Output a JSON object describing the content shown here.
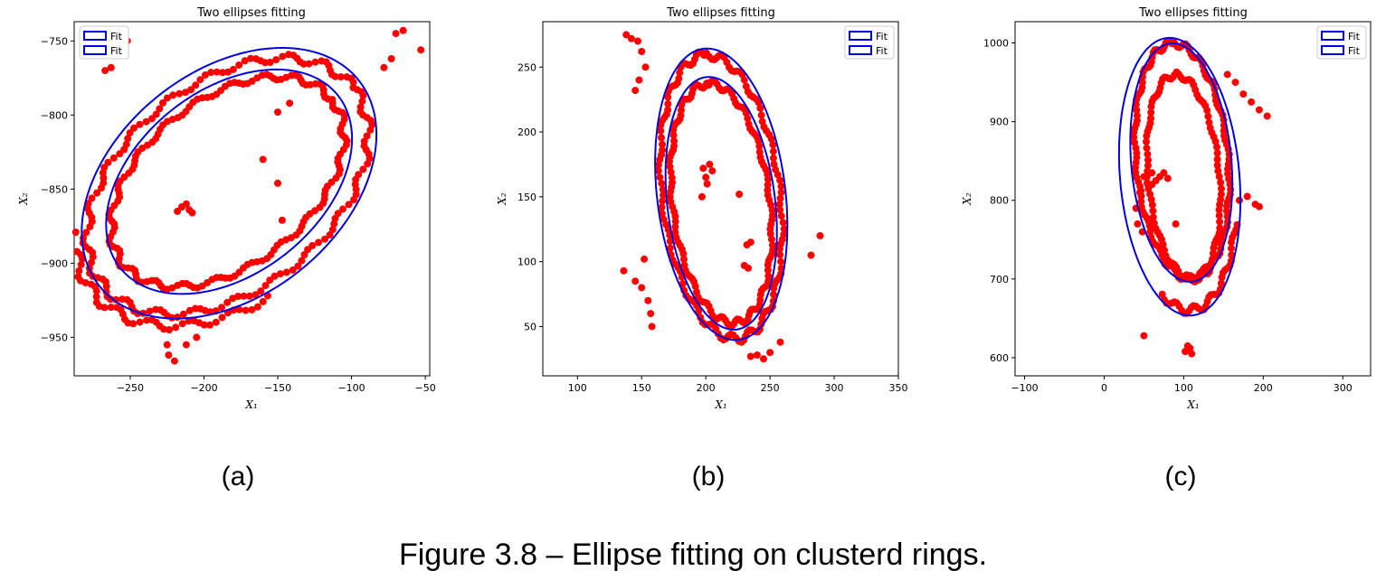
{
  "figure": {
    "caption": "Figure 3.8 – Ellipse fitting on clusterd rings.",
    "sublabels": [
      "(a)",
      "(b)",
      "(c)"
    ]
  },
  "colors": {
    "points": "#ff0000",
    "fit": "#0000e0"
  },
  "chart_data": [
    {
      "type": "scatter",
      "title": "Two ellipses fitting",
      "xlabel": "X₁",
      "ylabel": "X₂",
      "xlim": [
        -288,
        -47
      ],
      "ylim": [
        -976,
        -737
      ],
      "xticks": [
        -250,
        -200,
        -150,
        -100,
        -50
      ],
      "xtick_labels": [
        "−250",
        "−200",
        "−150",
        "−100",
        "−50"
      ],
      "yticks": [
        -950,
        -900,
        -850,
        -800,
        -750
      ],
      "ytick_labels": [
        "−950",
        "−900",
        "−850",
        "−800",
        "−750"
      ],
      "legend": {
        "placement": "upper-left",
        "entries": [
          "Fit",
          "Fit"
        ]
      },
      "fits": [
        {
          "cx": -183,
          "cy": -846,
          "a": 112,
          "b": 76,
          "angle_deg": 38
        },
        {
          "cx": -183,
          "cy": -845,
          "a": 94,
          "b": 62,
          "angle_deg": 38
        }
      ],
      "rings": [
        {
          "cx": -184,
          "cy": -848,
          "a": 108,
          "b": 70,
          "angle_deg": 38,
          "n": 160,
          "arc": [
            0,
            360
          ]
        },
        {
          "cx": -184,
          "cy": -845,
          "a": 90,
          "b": 56,
          "angle_deg": 38,
          "n": 160,
          "arc": [
            0,
            360
          ]
        },
        {
          "cx": -184,
          "cy": -848,
          "a": 116,
          "b": 78,
          "angle_deg": 38,
          "n": 50,
          "arc": [
            150,
            260
          ]
        }
      ],
      "points": [
        [
          -215,
          -862
        ],
        [
          -212,
          -860
        ],
        [
          -218,
          -865
        ],
        [
          -210,
          -864
        ],
        [
          -208,
          -866
        ],
        [
          -150,
          -846
        ],
        [
          -147,
          -871
        ],
        [
          -252,
          -750
        ],
        [
          -267,
          -770
        ],
        [
          -263,
          -768
        ],
        [
          -70,
          -745
        ],
        [
          -65,
          -743
        ],
        [
          -53,
          -756
        ],
        [
          -73,
          -762
        ],
        [
          -78,
          -768
        ],
        [
          -225,
          -955
        ],
        [
          -224,
          -962
        ],
        [
          -220,
          -966
        ],
        [
          -212,
          -955
        ],
        [
          -205,
          -950
        ],
        [
          -160,
          -830
        ],
        [
          -150,
          -798
        ],
        [
          -142,
          -792
        ]
      ]
    },
    {
      "type": "scatter",
      "title": "Two ellipses fitting",
      "xlabel": "X₁",
      "ylabel": "X₂",
      "xlim": [
        73,
        350
      ],
      "ylim": [
        12,
        285
      ],
      "xticks": [
        100,
        150,
        200,
        250,
        300,
        350
      ],
      "xtick_labels": [
        "100",
        "150",
        "200",
        "250",
        "300",
        "350"
      ],
      "yticks": [
        50,
        100,
        150,
        200,
        250
      ],
      "ytick_labels": [
        "50",
        "100",
        "150",
        "200",
        "250"
      ],
      "legend": {
        "placement": "upper-right",
        "entries": [
          "Fit",
          "Fit"
        ]
      },
      "fits": [
        {
          "cx": 212,
          "cy": 152,
          "a": 113,
          "b": 50,
          "angle_deg": 97
        },
        {
          "cx": 212,
          "cy": 145,
          "a": 98,
          "b": 42,
          "angle_deg": 97
        }
      ],
      "rings": [
        {
          "cx": 212,
          "cy": 150,
          "a": 110,
          "b": 46,
          "angle_deg": 97,
          "n": 150,
          "arc": [
            0,
            360
          ]
        },
        {
          "cx": 212,
          "cy": 145,
          "a": 93,
          "b": 38,
          "angle_deg": 97,
          "n": 150,
          "arc": [
            0,
            360
          ]
        }
      ],
      "points": [
        [
          138,
          275
        ],
        [
          142,
          272
        ],
        [
          147,
          270
        ],
        [
          150,
          262
        ],
        [
          153,
          250
        ],
        [
          148,
          240
        ],
        [
          145,
          232
        ],
        [
          136,
          93
        ],
        [
          145,
          85
        ],
        [
          150,
          80
        ],
        [
          155,
          70
        ],
        [
          157,
          60
        ],
        [
          158,
          50
        ],
        [
          152,
          102
        ],
        [
          198,
          172
        ],
        [
          200,
          165
        ],
        [
          201,
          160
        ],
        [
          203,
          175
        ],
        [
          205,
          170
        ],
        [
          197,
          150
        ],
        [
          226,
          152
        ],
        [
          232,
          113
        ],
        [
          235,
          115
        ],
        [
          230,
          97
        ],
        [
          233,
          95
        ],
        [
          289,
          120
        ],
        [
          282,
          105
        ],
        [
          240,
          28
        ],
        [
          245,
          25
        ],
        [
          250,
          30
        ],
        [
          258,
          38
        ],
        [
          235,
          27
        ]
      ]
    },
    {
      "type": "scatter",
      "title": "Two ellipses fitting",
      "xlabel": "X₁",
      "ylabel": "X₂",
      "xlim": [
        -112,
        335
      ],
      "ylim": [
        577,
        1027
      ],
      "xticks": [
        -100,
        0,
        100,
        200,
        300
      ],
      "xtick_labels": [
        "−100",
        "0",
        "100",
        "200",
        "300"
      ],
      "yticks": [
        600,
        700,
        800,
        900,
        1000
      ],
      "ytick_labels": [
        "600",
        "700",
        "800",
        "900",
        "1000"
      ],
      "legend": {
        "placement": "upper-right",
        "entries": [
          "Fit",
          "Fit"
        ]
      },
      "fits": [
        {
          "cx": 95,
          "cy": 830,
          "a": 177,
          "b": 75,
          "angle_deg": 95
        },
        {
          "cx": 97,
          "cy": 848,
          "a": 152,
          "b": 63,
          "angle_deg": 95
        }
      ],
      "rings": [
        {
          "cx": 98,
          "cy": 850,
          "a": 150,
          "b": 58,
          "angle_deg": 95,
          "n": 150,
          "arc": [
            0,
            360
          ]
        },
        {
          "cx": 100,
          "cy": 830,
          "a": 130,
          "b": 45,
          "angle_deg": 95,
          "n": 110,
          "arc": [
            0,
            360
          ]
        },
        {
          "cx": 95,
          "cy": 830,
          "a": 170,
          "b": 70,
          "angle_deg": 95,
          "n": 40,
          "arc": [
            150,
            250
          ]
        }
      ],
      "points": [
        [
          50,
          830
        ],
        [
          60,
          835
        ],
        [
          70,
          830
        ],
        [
          80,
          828
        ],
        [
          65,
          825
        ],
        [
          55,
          820
        ],
        [
          45,
          810
        ],
        [
          40,
          790
        ],
        [
          42,
          770
        ],
        [
          48,
          760
        ],
        [
          60,
          820
        ],
        [
          75,
          835
        ],
        [
          170,
          800
        ],
        [
          180,
          805
        ],
        [
          190,
          795
        ],
        [
          195,
          792
        ],
        [
          155,
          960
        ],
        [
          165,
          950
        ],
        [
          175,
          935
        ],
        [
          185,
          925
        ],
        [
          195,
          915
        ],
        [
          205,
          907
        ],
        [
          105,
          615
        ],
        [
          110,
          605
        ],
        [
          102,
          608
        ],
        [
          108,
          612
        ],
        [
          50,
          628
        ],
        [
          90,
          770
        ]
      ]
    }
  ]
}
